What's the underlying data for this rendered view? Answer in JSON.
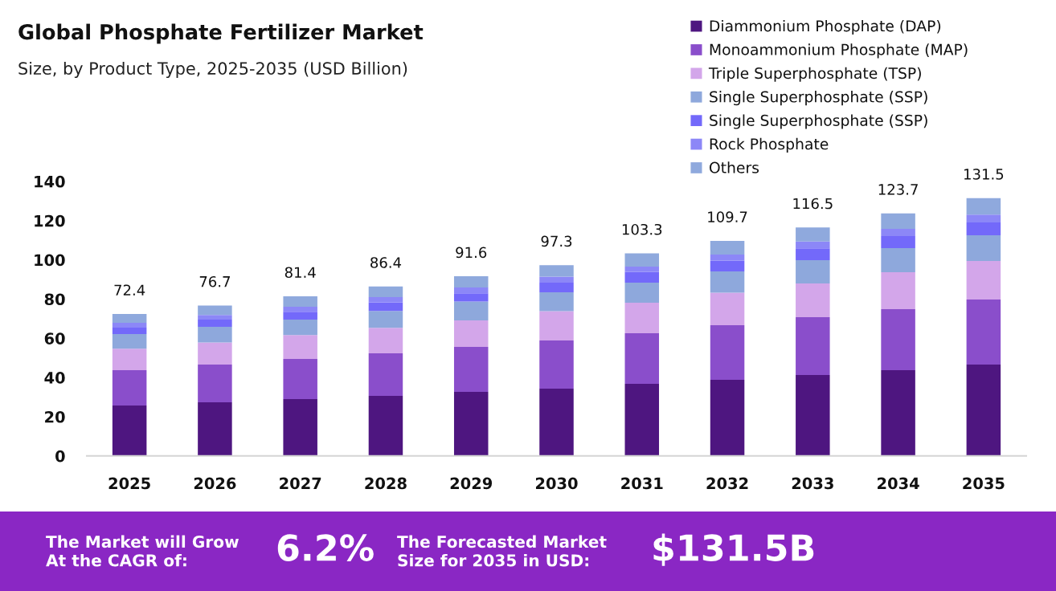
{
  "chart_data": {
    "type": "bar",
    "stacked": true,
    "title": "Global Phosphate Fertilizer Market",
    "subtitle": "Size, by Product Type, 2025-2035 (USD Billion)",
    "categories": [
      "2025",
      "2026",
      "2027",
      "2028",
      "2029",
      "2030",
      "2031",
      "2032",
      "2033",
      "2034",
      "2035"
    ],
    "series": [
      {
        "name": "Diammonium Phosphate (DAP)",
        "color": "#4e1680",
        "values": [
          25.7,
          27.4,
          29.0,
          30.6,
          32.7,
          34.3,
          36.8,
          38.8,
          41.3,
          43.7,
          46.6
        ]
      },
      {
        "name": "Monoammonium Phosphate (MAP)",
        "color": "#8a4ecb",
        "values": [
          18.0,
          19.2,
          20.5,
          21.7,
          22.9,
          24.6,
          25.8,
          27.9,
          29.5,
          31.2,
          33.2
        ]
      },
      {
        "name": "Triple Superphosphate (TSP)",
        "color": "#d3a6ea",
        "values": [
          11.0,
          11.3,
          12.1,
          13.0,
          13.5,
          14.9,
          15.5,
          16.5,
          17.2,
          18.8,
          19.6
        ]
      },
      {
        "name": "Single Superphosphate (SSP)",
        "color": "#8ea8dc",
        "values": [
          7.5,
          7.9,
          7.9,
          8.6,
          9.6,
          9.7,
          10.3,
          10.9,
          11.8,
          12.3,
          13.1
        ]
      },
      {
        "name": "Single Superphosphate (SSP)",
        "color": "#7369fa",
        "values": [
          3.2,
          3.7,
          4.0,
          4.4,
          4.2,
          4.9,
          5.4,
          5.4,
          6.1,
          6.1,
          6.6
        ]
      },
      {
        "name": "Rock Phosphate",
        "color": "#8c87f7",
        "values": [
          2.5,
          2.4,
          2.6,
          2.7,
          3.0,
          3.0,
          2.8,
          3.2,
          3.4,
          3.7,
          4.0
        ]
      },
      {
        "name": "Others",
        "color": "#8fa9dd",
        "values": [
          4.5,
          4.8,
          5.3,
          5.4,
          5.7,
          5.9,
          6.7,
          7.0,
          7.2,
          7.9,
          8.4
        ]
      }
    ],
    "totals": [
      "72.4",
      "76.7",
      "81.4",
      "86.4",
      "91.6",
      "97.3",
      "103.3",
      "109.7",
      "116.5",
      "123.7",
      "131.5"
    ],
    "ylim": [
      0,
      140
    ],
    "yticks": [
      0,
      20,
      40,
      60,
      80,
      100,
      120,
      140
    ],
    "legend": "top right",
    "annotations": [
      "The Market will Grow\nAt the CAGR of:",
      "6.2%",
      "The Forecasted Market\nSize for 2035 in USD:",
      "$131.5B"
    ]
  }
}
